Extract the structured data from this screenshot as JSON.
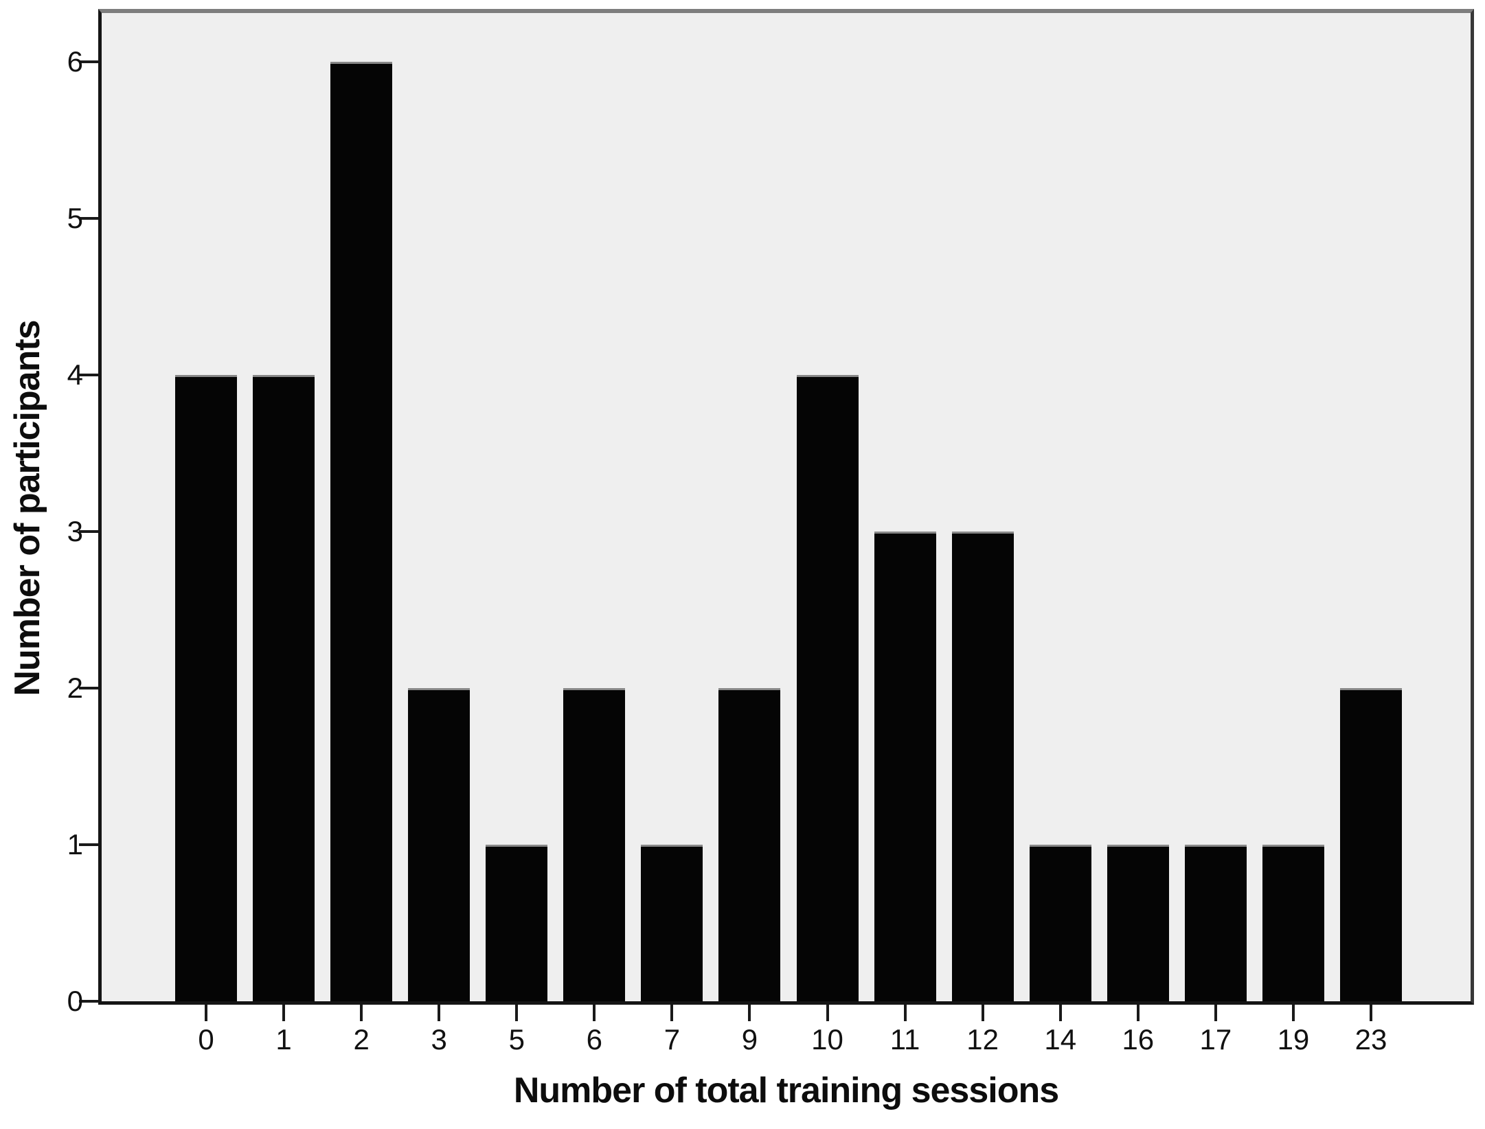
{
  "figure": {
    "background_color": "#ffffff",
    "plot_background_color": "#efefef",
    "bar_color": "#050505",
    "bar_cap_color": "#888888",
    "axis_line_color": "#151515",
    "frame_top_color": "#7d7d7d",
    "frame_right_color": "#383838",
    "tick_color": "#1a1a1a",
    "text_color": "#111111"
  },
  "chart_data": {
    "type": "bar",
    "title": "",
    "xlabel": "Number of total training sessions",
    "ylabel": "Number of participants",
    "categories": [
      "0",
      "1",
      "2",
      "3",
      "5",
      "6",
      "7",
      "9",
      "10",
      "11",
      "12",
      "14",
      "16",
      "17",
      "19",
      "23"
    ],
    "values": [
      4,
      4,
      6,
      2,
      1,
      2,
      1,
      2,
      4,
      3,
      3,
      1,
      1,
      1,
      1,
      2
    ],
    "yticks": [
      0,
      1,
      2,
      3,
      4,
      5,
      6
    ],
    "ylim": [
      0,
      6.35
    ],
    "xlim_note": "categorical axis",
    "grid": false,
    "legend": null
  }
}
